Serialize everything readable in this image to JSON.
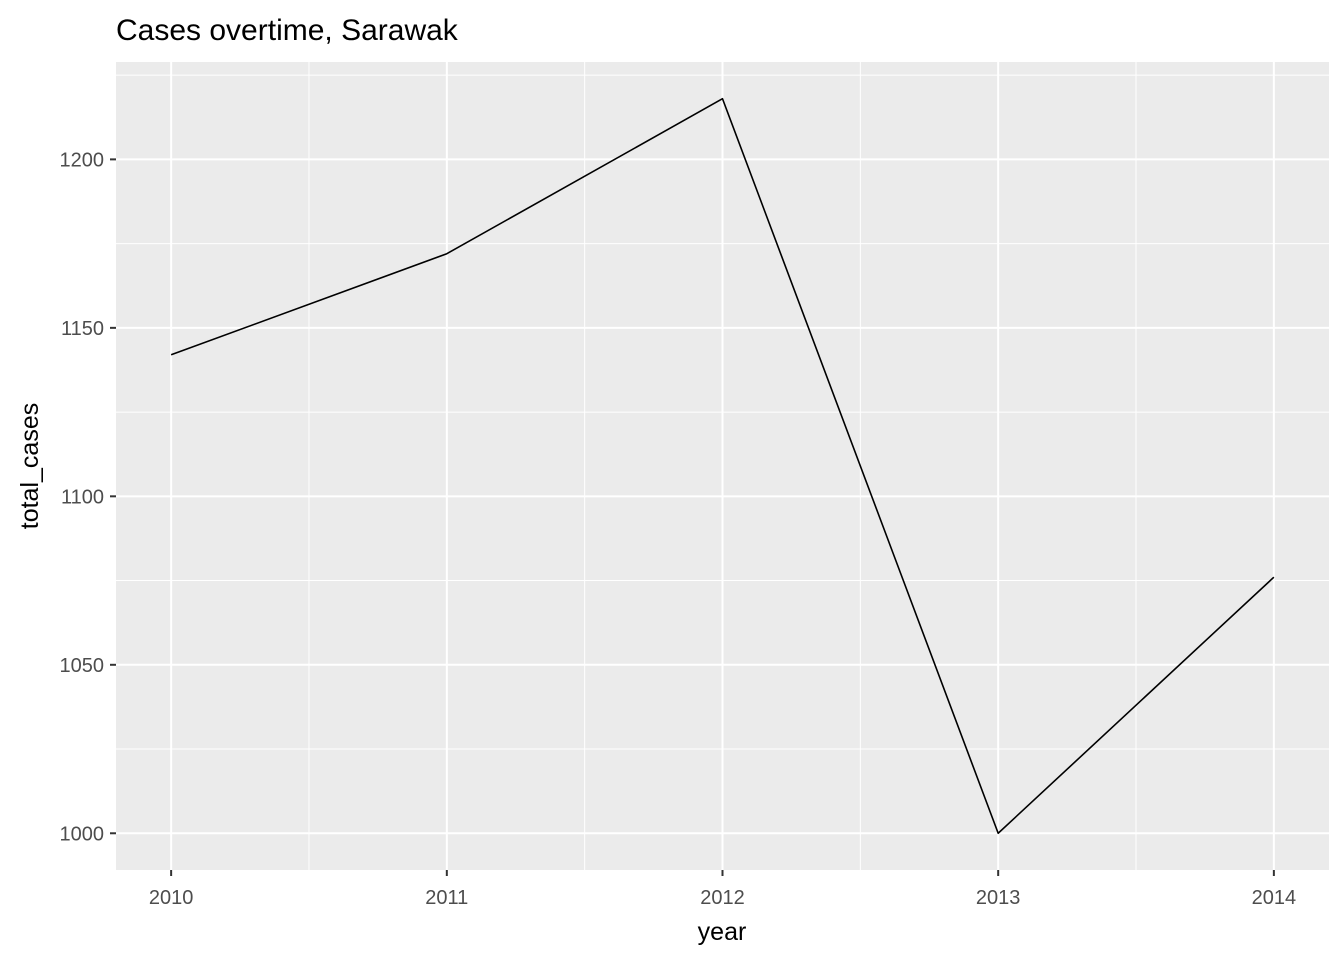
{
  "chart_data": {
    "type": "line",
    "title": "Cases overtime, Sarawak",
    "xlabel": "year",
    "ylabel": "total_cases",
    "x": [
      2010,
      2011,
      2012,
      2013,
      2014
    ],
    "x_tick_labels": [
      "2010",
      "2011",
      "2012",
      "2013",
      "2014"
    ],
    "y_ticks": [
      1000,
      1050,
      1100,
      1150,
      1200
    ],
    "y_tick_labels": [
      "1000",
      "1050",
      "1100",
      "1150",
      "1200"
    ],
    "series": [
      {
        "values": [
          1142,
          1172,
          1218,
          1000,
          1076
        ]
      }
    ],
    "xlim": [
      2009.8,
      2014.2
    ],
    "ylim": [
      989.1,
      1228.9
    ],
    "grid": true,
    "panel_background": "#ebebeb",
    "grid_color": "#ffffff",
    "line_color": "#000000"
  }
}
